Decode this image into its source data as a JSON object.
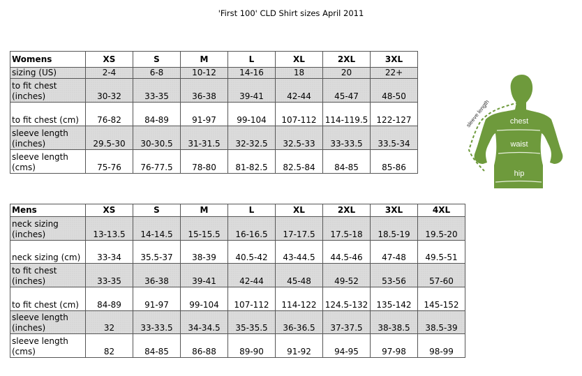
{
  "title": "'First 100' CLD Shirt sizes April 2011",
  "womens": {
    "header": [
      "Womens",
      "XS",
      "S",
      "M",
      "L",
      "XL",
      "2XL",
      "3XL"
    ],
    "rows": [
      {
        "label": "sizing (US)",
        "values": [
          "2-4",
          "6-8",
          "10-12",
          "14-16",
          "18",
          "20",
          "22+"
        ],
        "shaded": true
      },
      {
        "label": "to fit chest (inches)",
        "values": [
          "30-32",
          "33-35",
          "36-38",
          "39-41",
          "42-44",
          "45-47",
          "48-50"
        ],
        "shaded": true
      },
      {
        "label": "to fit chest (cm)",
        "values": [
          "76-82",
          "84-89",
          "91-97",
          "99-104",
          "107-112",
          "114-119.5",
          "122-127"
        ],
        "shaded": false
      },
      {
        "label": "sleeve length (inches)",
        "values": [
          "29.5-30",
          "30-30.5",
          "31-31.5",
          "32-32.5",
          "32.5-33",
          "33-33.5",
          "33.5-34"
        ],
        "shaded": true
      },
      {
        "label": "sleeve length (cms)",
        "values": [
          "75-76",
          "76-77.5",
          "78-80",
          "81-82.5",
          "82.5-84",
          "84-85",
          "85-86"
        ],
        "shaded": false
      }
    ]
  },
  "mens": {
    "header": [
      "Mens",
      "XS",
      "S",
      "M",
      "L",
      "XL",
      "2XL",
      "3XL",
      "4XL"
    ],
    "rows": [
      {
        "label": "neck sizing (inches)",
        "values": [
          "13-13.5",
          "14-14.5",
          "15-15.5",
          "16-16.5",
          "17-17.5",
          "17.5-18",
          "18.5-19",
          "19.5-20"
        ],
        "shaded": true
      },
      {
        "label": "neck sizing (cm)",
        "values": [
          "33-34",
          "35.5-37",
          "38-39",
          "40.5-42",
          "43-44.5",
          "44.5-46",
          "47-48",
          "49.5-51"
        ],
        "shaded": false
      },
      {
        "label": "to fit chest (inches)",
        "values": [
          "33-35",
          "36-38",
          "39-41",
          "42-44",
          "45-48",
          "49-52",
          "53-56",
          "57-60"
        ],
        "shaded": true
      },
      {
        "label": "to fit chest (cm)",
        "values": [
          "84-89",
          "91-97",
          "99-104",
          "107-112",
          "114-122",
          "124.5-132",
          "135-142",
          "145-152"
        ],
        "shaded": false
      },
      {
        "label": "sleeve length (inches)",
        "values": [
          "32",
          "33-33.5",
          "34-34.5",
          "35-35.5",
          "36-36.5",
          "37-37.5",
          "38-38.5",
          "38.5-39"
        ],
        "shaded": true
      },
      {
        "label": "sleeve length (cms)",
        "values": [
          "82",
          "84-85",
          "86-88",
          "89-90",
          "91-92",
          "94-95",
          "97-98",
          "98-99"
        ],
        "shaded": false
      }
    ]
  },
  "figure": {
    "labels": {
      "sleeve": "sleeve length",
      "chest": "chest",
      "waist": "waist",
      "hip": "hip"
    },
    "color": "#6e9a3c"
  }
}
